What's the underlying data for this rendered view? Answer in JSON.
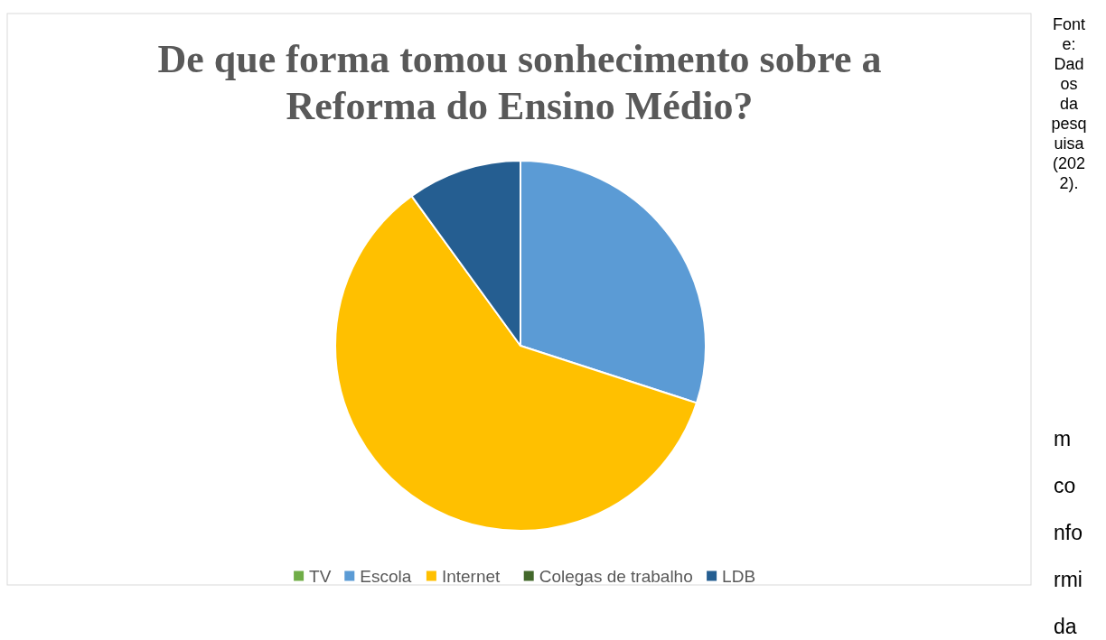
{
  "chart_data": {
    "type": "pie",
    "title": "De que forma tomou sonhecimento sobre a Reforma do Ensino Médio?",
    "categories": [
      "TV",
      "Escola",
      "Internet",
      "Colegas de trabalho",
      "LDB"
    ],
    "values": [
      0,
      30,
      60,
      0,
      10
    ],
    "colors": [
      "#70ad47",
      "#5b9bd5",
      "#ffc000",
      "#43682b",
      "#255e91"
    ],
    "legend": "bottom",
    "annotations": [
      "Fonte: Dados da pesquisa (2022).",
      "m conformida"
    ]
  }
}
